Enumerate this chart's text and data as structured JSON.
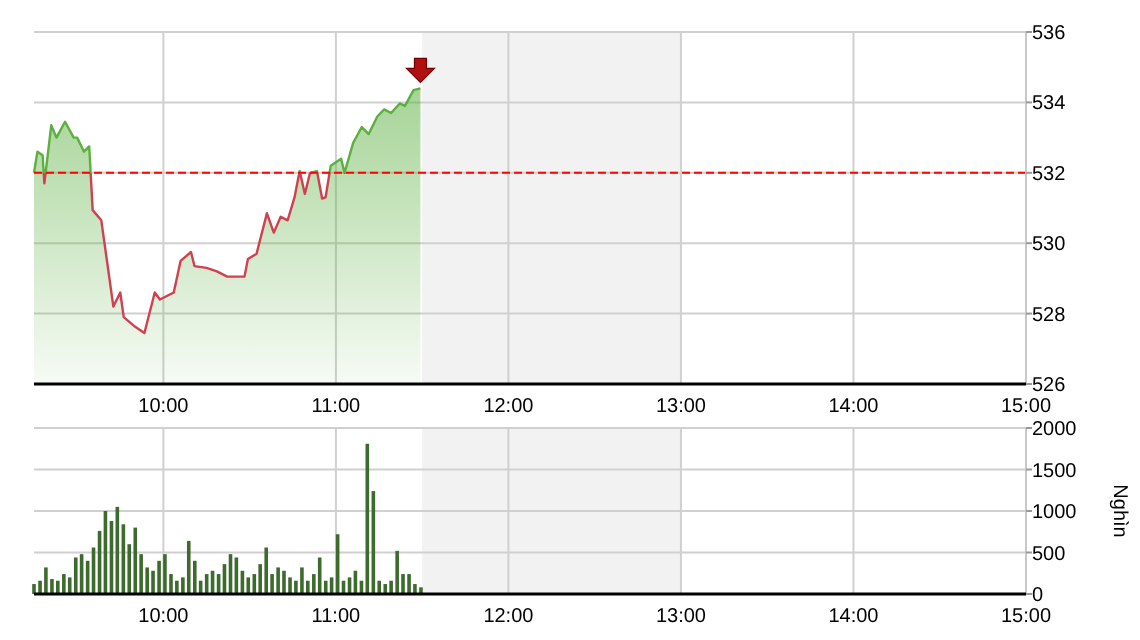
{
  "chart_data": [
    {
      "type": "area",
      "xlim": [
        9.25,
        15
      ],
      "xticks": [
        {
          "value": 10,
          "label": "10:00"
        },
        {
          "value": 11,
          "label": "11:00"
        },
        {
          "value": 12,
          "label": "12:00"
        },
        {
          "value": 13,
          "label": "13:00"
        },
        {
          "value": 14,
          "label": "14:00"
        },
        {
          "value": 15,
          "label": "15:00"
        }
      ],
      "ylim": [
        526,
        536
      ],
      "yticks": [
        526,
        528,
        530,
        532,
        534,
        536
      ],
      "grid": true,
      "ref_lines": [
        {
          "axis": "y",
          "value": 532,
          "color": "#ff0000",
          "line_style": "dashed"
        }
      ],
      "bands": [
        {
          "axis": "x",
          "from": 11.5,
          "to": 13,
          "color": "#f2f2f2"
        }
      ],
      "series": [
        {
          "color": "#5cb040",
          "x": [
            9.25,
            9.27,
            9.3,
            9.31,
            9.35,
            9.38,
            9.43,
            9.48,
            9.5,
            9.54,
            9.57,
            9.59,
            9.64,
            9.67,
            9.71,
            9.75,
            9.77,
            9.83,
            9.89,
            9.95,
            9.98,
            10.06,
            10.1,
            10.16,
            10.18,
            10.25,
            10.31,
            10.37,
            10.47,
            10.49,
            10.54,
            10.6,
            10.64,
            10.68,
            10.72,
            10.76,
            10.79,
            10.82,
            10.85,
            10.89,
            10.92,
            10.94,
            10.97,
            11.03,
            11.05,
            11.1,
            11.15,
            11.19,
            11.24,
            11.28,
            11.32,
            11.37,
            11.4,
            11.45,
            11.49
          ],
          "values": [
            532,
            532.6,
            532.5,
            531.7,
            533.35,
            533,
            533.45,
            533,
            533,
            532.6,
            532.75,
            530.94,
            530.65,
            529.6,
            528.2,
            528.6,
            527.9,
            527.65,
            527.45,
            528.6,
            528.4,
            528.6,
            529.5,
            529.75,
            529.35,
            529.3,
            529.2,
            529.05,
            529.05,
            529.55,
            529.7,
            530.85,
            530.3,
            530.75,
            530.65,
            531.3,
            532.05,
            531.4,
            532,
            532.05,
            531.27,
            531.3,
            532.2,
            532.4,
            532,
            532.85,
            533.3,
            533.1,
            533.6,
            533.8,
            533.7,
            533.97,
            533.9,
            534.35,
            534.4
          ]
        }
      ]
    },
    {
      "type": "bar",
      "ylabel": "Nghìn",
      "xlim": [
        9.25,
        15
      ],
      "xticks": [
        {
          "value": 10,
          "label": "10:00"
        },
        {
          "value": 11,
          "label": "11:00"
        },
        {
          "value": 12,
          "label": "12:00"
        },
        {
          "value": 13,
          "label": "13:00"
        },
        {
          "value": 14,
          "label": "14:00"
        },
        {
          "value": 15,
          "label": "15:00"
        }
      ],
      "ylim": [
        0,
        2000
      ],
      "yticks": [
        0,
        500,
        1000,
        1500,
        2000
      ],
      "grid": true,
      "bands": [
        {
          "axis": "x",
          "from": 11.5,
          "to": 13,
          "color": "#f2f2f2"
        }
      ],
      "series": [
        {
          "color": "#3d6b2e",
          "x": [
            9.25,
            9.285,
            9.319,
            9.354,
            9.388,
            9.423,
            9.457,
            9.492,
            9.526,
            9.561,
            9.595,
            9.63,
            9.664,
            9.699,
            9.733,
            9.768,
            9.802,
            9.837,
            9.871,
            9.906,
            9.94,
            9.975,
            10.009,
            10.044,
            10.078,
            10.113,
            10.147,
            10.182,
            10.216,
            10.251,
            10.285,
            10.32,
            10.354,
            10.389,
            10.423,
            10.458,
            10.492,
            10.527,
            10.561,
            10.596,
            10.63,
            10.665,
            10.699,
            10.734,
            10.768,
            10.803,
            10.837,
            10.872,
            10.906,
            10.941,
            10.975,
            11.01,
            11.044,
            11.079,
            11.113,
            11.148,
            11.182,
            11.217,
            11.251,
            11.286,
            11.32,
            11.355,
            11.389,
            11.424,
            11.458,
            11.493
          ],
          "values": [
            120,
            160,
            320,
            180,
            160,
            240,
            200,
            440,
            480,
            400,
            560,
            760,
            1000,
            880,
            1050,
            840,
            600,
            800,
            480,
            320,
            280,
            400,
            480,
            240,
            160,
            200,
            640,
            400,
            160,
            240,
            280,
            240,
            360,
            480,
            440,
            280,
            200,
            240,
            360,
            560,
            240,
            320,
            280,
            200,
            160,
            320,
            160,
            240,
            440,
            160,
            200,
            720,
            160,
            200,
            280,
            160,
            1810,
            1240,
            160,
            120,
            160,
            520,
            240,
            240,
            120,
            80
          ]
        }
      ]
    }
  ]
}
